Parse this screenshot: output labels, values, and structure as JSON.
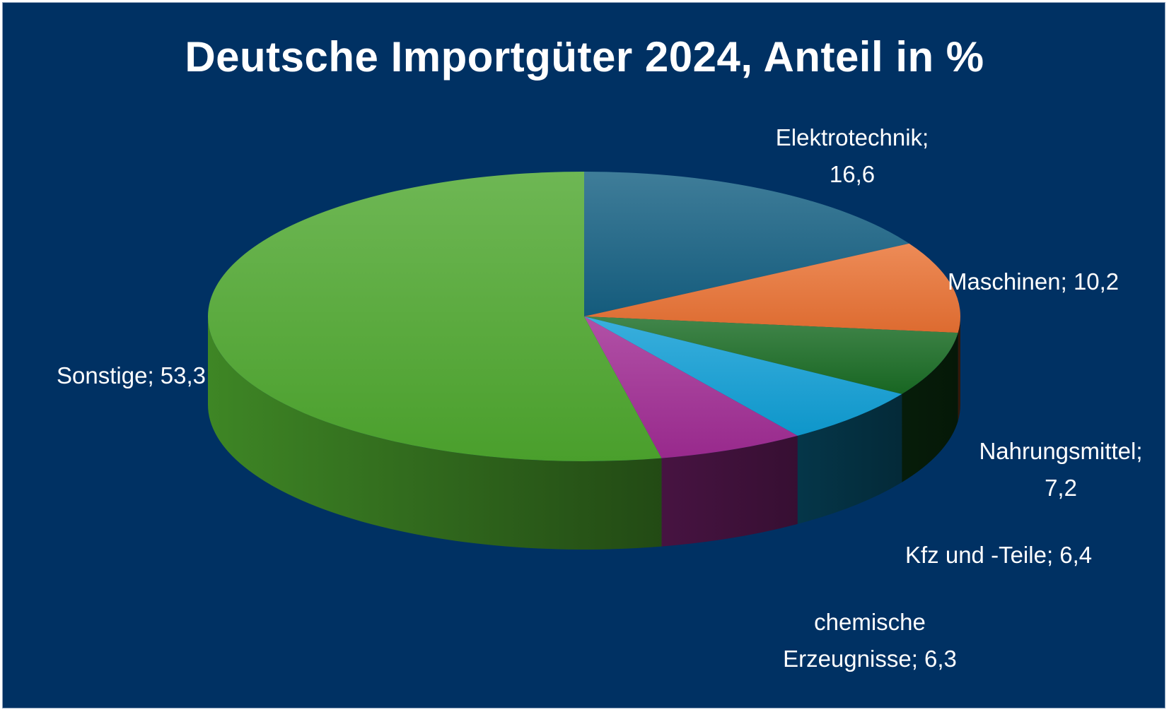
{
  "chart_data": {
    "type": "pie",
    "title": "Deutsche Importgüter 2024, Anteil in %",
    "slices": [
      {
        "label": "Elektrotechnik",
        "value": 16.6,
        "value_text": "16,6",
        "color": "#156082"
      },
      {
        "label": "Maschinen",
        "value": 10.2,
        "value_text": "10,2",
        "color": "#E97132"
      },
      {
        "label": "Nahrungsmittel",
        "value": 7.2,
        "value_text": "7,2",
        "color": "#196B24"
      },
      {
        "label": "Kfz und -Teile",
        "value": 6.4,
        "value_text": "6,4",
        "color": "#0F9ED5"
      },
      {
        "label": "chemische Erzeugnisse",
        "value": 6.3,
        "value_text": "6,3",
        "color": "#A02B93"
      },
      {
        "label": "Sonstige",
        "value": 53.3,
        "value_text": "53,3",
        "color": "#4EA72E"
      }
    ],
    "legend": "none",
    "style": "3d-pie"
  },
  "background_color": "#003163"
}
